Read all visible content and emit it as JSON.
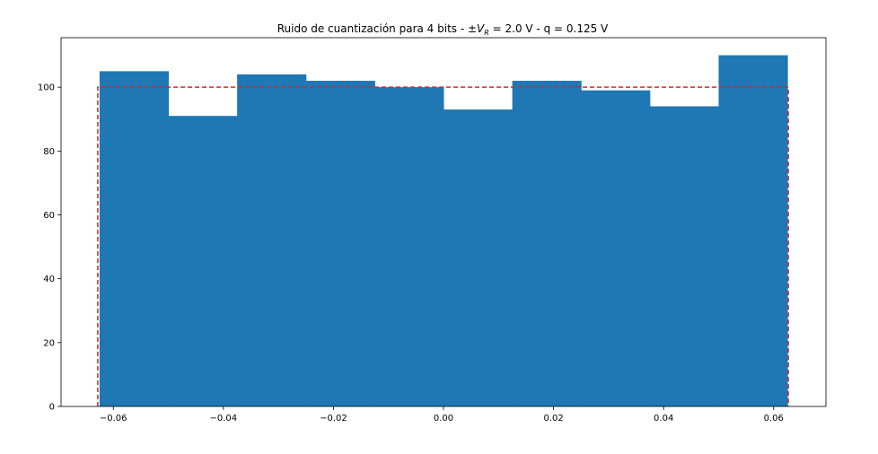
{
  "chart_data": {
    "type": "bar",
    "title": {
      "prefix": "Ruido de cuantización para 4 bits - ±",
      "v_symbol": "V",
      "v_subscript": "R",
      "suffix": " =  2.0 V - q = 0.125 V"
    },
    "xlabel": "",
    "ylabel": "",
    "xlim": [
      -0.0695,
      0.0695
    ],
    "ylim": [
      0,
      115.5
    ],
    "bin_edges": [
      -0.0625,
      -0.05,
      -0.0375,
      -0.025,
      -0.0125,
      0.0,
      0.0125,
      0.025,
      0.0375,
      0.05,
      0.0625
    ],
    "values": [
      105,
      91,
      104,
      102,
      100,
      93,
      102,
      99,
      94,
      110
    ],
    "reference_line": {
      "level": 100,
      "x_range": [
        -0.0625,
        0.0625
      ],
      "style": "dashed",
      "color": "#d62728"
    },
    "x_ticks": [
      -0.06,
      -0.04,
      -0.02,
      0.0,
      0.02,
      0.04,
      0.06
    ],
    "x_tick_labels": [
      "−0.06",
      "−0.04",
      "−0.02",
      "0.00",
      "0.02",
      "0.04",
      "0.06"
    ],
    "y_ticks": [
      0,
      20,
      40,
      60,
      80,
      100
    ],
    "y_tick_labels": [
      "0",
      "20",
      "40",
      "60",
      "80",
      "100"
    ],
    "bar_color": "#1f77b4",
    "grid": false,
    "legend": "none"
  }
}
